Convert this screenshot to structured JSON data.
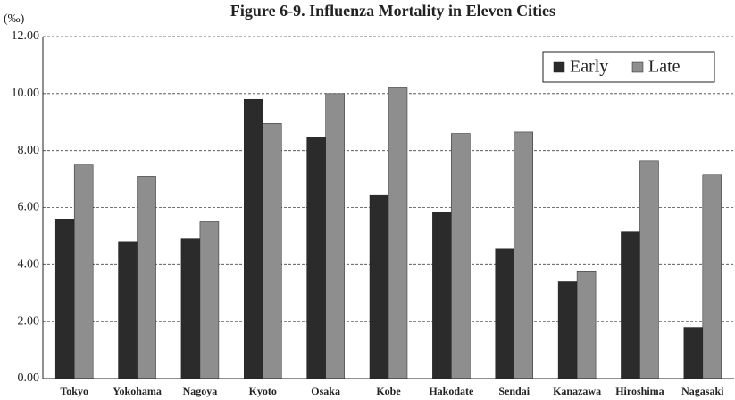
{
  "chart_data": {
    "type": "bar",
    "title": "Figure 6-9. Influenza Mortality in Eleven Cities",
    "y_axis_label": "(‰)",
    "categories": [
      "Tokyo",
      "Yokohama",
      "Nagoya",
      "Kyoto",
      "Osaka",
      "Kobe",
      "Hakodate",
      "Sendai",
      "Kanazawa",
      "Hiroshima",
      "Nagasaki"
    ],
    "series": [
      {
        "name": "Early",
        "color": "#2b2b2b",
        "values": [
          5.6,
          4.8,
          4.9,
          9.8,
          8.45,
          6.45,
          5.85,
          4.55,
          3.4,
          5.15,
          1.8
        ]
      },
      {
        "name": "Late",
        "color": "#8e8e8e",
        "values": [
          7.5,
          7.1,
          5.5,
          8.95,
          10.0,
          10.2,
          8.6,
          8.65,
          3.75,
          7.65,
          7.15
        ]
      }
    ],
    "ylim": [
      0,
      12
    ],
    "yticks": [
      {
        "value": 0,
        "label": "0.00"
      },
      {
        "value": 2,
        "label": "2.00"
      },
      {
        "value": 4,
        "label": "4.00"
      },
      {
        "value": 6,
        "label": "6.00"
      },
      {
        "value": 8,
        "label": "8.00"
      },
      {
        "value": 10,
        "label": "10.00"
      },
      {
        "value": 12,
        "label": "12.00"
      }
    ],
    "grid": true,
    "legend_position": "upper right"
  }
}
